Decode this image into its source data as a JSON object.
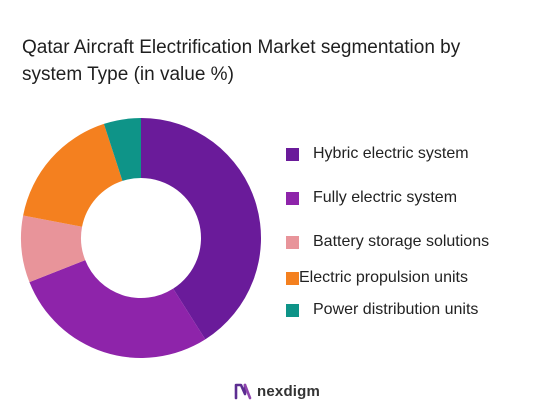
{
  "chart_data": {
    "type": "pie",
    "title": "Qatar Aircraft Electrification Market segmentation by system Type (in value %)",
    "categories": [
      "Hybric electric system",
      "Fully electric system",
      "Battery storage solutions",
      "Electric propulsion units",
      "Power distribution units"
    ],
    "values": [
      41,
      28,
      9,
      17,
      5
    ],
    "colors": [
      "#6a1b9a",
      "#8e24aa",
      "#e8949a",
      "#f4801f",
      "#0e9488"
    ],
    "donut": true,
    "legend": "right",
    "start": "top",
    "direction": "clockwise"
  },
  "brand": {
    "name": "nexdigm",
    "icon": "nexdigm-logo-icon",
    "color": "#5c2d91"
  }
}
